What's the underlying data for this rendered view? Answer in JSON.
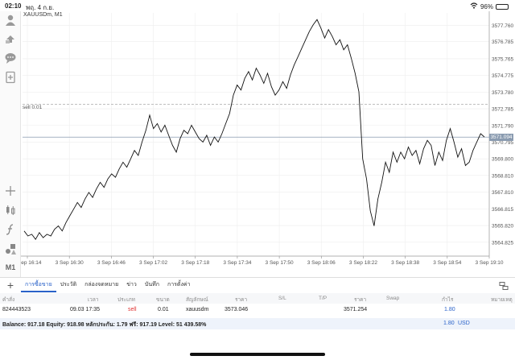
{
  "status_bar": {
    "time": "02:10",
    "date": "พฤ. 4 ก.ย.",
    "battery": "96%",
    "icons": [
      "wifi-icon",
      "battery-icon"
    ]
  },
  "toolbar": {
    "items": [
      "account-icon",
      "trade-icon",
      "chat-icon",
      "add-chart-icon",
      "crosshair-icon",
      "chart-type-icon",
      "indicator-icon",
      "objects-icon"
    ],
    "timeframe": "M1"
  },
  "chart": {
    "symbol": "XAUUSDm, M1",
    "sell_line_label": "sell 0.01",
    "current_price": "3571.094"
  },
  "chart_data": {
    "type": "line",
    "title": "XAUUSDm, M1",
    "xlabel": "",
    "ylabel": "",
    "ylim": [
      3564.0,
      3578.5
    ],
    "x_ticks": [
      "3 Sep 16:14",
      "3 Sep 16:30",
      "3 Sep 16:46",
      "3 Sep 17:02",
      "3 Sep 17:18",
      "3 Sep 17:34",
      "3 Sep 17:50",
      "3 Sep 18:06",
      "3 Sep 18:22",
      "3 Sep 18:38",
      "3 Sep 18:54",
      "3 Sep 19:10"
    ],
    "y_ticks": [
      "3577.760",
      "3576.785",
      "3575.765",
      "3574.775",
      "3573.780",
      "3572.785",
      "3571.790",
      "3570.795",
      "3569.800",
      "3568.810",
      "3567.810",
      "3566.815",
      "3565.820",
      "3564.825"
    ],
    "grid": true,
    "series": [
      {
        "values": [
          3565.5,
          3565.2,
          3565.3,
          3565.0,
          3565.4,
          3565.1,
          3565.3,
          3565.2,
          3565.6,
          3565.8,
          3565.5,
          3566.0,
          3566.4,
          3566.8,
          3567.2,
          3566.9,
          3567.4,
          3567.8,
          3567.5,
          3568.0,
          3568.4,
          3568.1,
          3568.6,
          3568.9,
          3568.7,
          3569.2,
          3569.6,
          3569.3,
          3569.8,
          3570.3,
          3570.0,
          3570.8,
          3571.5,
          3572.4,
          3571.6,
          3571.9,
          3571.4,
          3571.8,
          3571.2,
          3570.6,
          3570.2,
          3571.0,
          3571.5,
          3571.3,
          3571.8,
          3571.4,
          3571.0,
          3570.8,
          3571.2,
          3570.6,
          3571.1,
          3570.8,
          3571.3,
          3571.9,
          3572.5,
          3573.6,
          3574.2,
          3573.9,
          3574.6,
          3575.0,
          3574.5,
          3575.2,
          3574.8,
          3574.3,
          3574.9,
          3574.1,
          3573.6,
          3573.9,
          3574.4,
          3574.0,
          3574.8,
          3575.4,
          3575.9,
          3576.4,
          3576.9,
          3577.4,
          3577.8,
          3578.1,
          3577.6,
          3577.0,
          3577.5,
          3577.1,
          3576.6,
          3576.9,
          3576.3,
          3576.6,
          3575.8,
          3574.9,
          3573.8,
          3569.8,
          3568.6,
          3566.7,
          3565.8,
          3567.4,
          3568.4,
          3569.6,
          3569.0,
          3570.2,
          3569.6,
          3570.2,
          3569.8,
          3570.5,
          3570.0,
          3570.3,
          3569.5,
          3570.4,
          3570.9,
          3570.6,
          3569.4,
          3570.2,
          3569.7,
          3570.9,
          3571.6,
          3570.8,
          3569.9,
          3570.4,
          3569.4,
          3569.6,
          3570.3,
          3570.8,
          3571.3,
          3571.1
        ]
      }
    ]
  },
  "tabs": [
    "การซื้อขาย",
    "ประวัติ",
    "กล่องจดหมาย",
    "ข่าว",
    "บันทึก",
    "การตั้งค่า"
  ],
  "table": {
    "headers": [
      "คำสั่ง",
      "เวลา",
      "ประเภท",
      "ขนาด",
      "สัญลักษณ์",
      "ราคา",
      "S/L",
      "T/P",
      "ราคา",
      "Swap",
      "กำไร",
      "หมายเหตุ"
    ],
    "row": {
      "order": "824443523",
      "time": "09.03 17:35",
      "type": "sell",
      "size": "0.01",
      "symbol": "xauusdm",
      "open_price": "3573.046",
      "sl": "",
      "tp": "",
      "current_price": "3571.254",
      "swap": "",
      "profit": "1.80",
      "comment": ""
    }
  },
  "balance": {
    "text": "Balance: 917.18 Equity: 918.98 หลักประกัน: 1.79 ฟรี: 917.19 Level: 51 439.58%",
    "profit": "1.80",
    "currency": "USD"
  },
  "colors": {
    "accent": "#2a62c9",
    "sell": "#e03030",
    "price_line": "#8a9bb0"
  }
}
